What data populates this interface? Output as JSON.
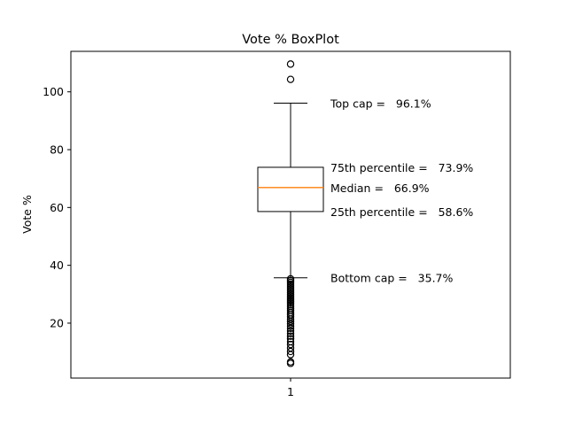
{
  "chart_data": {
    "type": "box",
    "title": "Vote % BoxPlot",
    "xlabel": "",
    "ylabel": "Vote %",
    "categories": [
      "1"
    ],
    "ylim": [
      1,
      114
    ],
    "yticks": [
      20,
      40,
      60,
      80,
      100
    ],
    "ytick_labels": [
      "20",
      "40",
      "60",
      "80",
      "100"
    ],
    "grid": false,
    "box": {
      "whisker_low": 35.7,
      "q1": 58.6,
      "median": 66.9,
      "q3": 73.9,
      "whisker_high": 96.1
    },
    "fliers": [
      109.6,
      104.3,
      35.3,
      34.7,
      34.1,
      33.5,
      32.9,
      32.3,
      31.7,
      31.1,
      30.5,
      29.9,
      29.3,
      28.7,
      28.1,
      27.5,
      26.9,
      26.3,
      25.7,
      25.0,
      24.3,
      23.6,
      22.9,
      22.2,
      21.4,
      20.6,
      19.8,
      19.0,
      18.2,
      17.3,
      16.4,
      15.5,
      14.6,
      13.6,
      12.6,
      11.4,
      10.2,
      9.1,
      6.6,
      6.1
    ],
    "annotations": [
      {
        "text": "Top cap =   96.1%",
        "y": 96.1
      },
      {
        "text": "75th percentile =   73.9%",
        "y": 73.9
      },
      {
        "text": "Median =   66.9%",
        "y": 66.9
      },
      {
        "text": "25th percentile =   58.6%",
        "y": 58.6
      },
      {
        "text": "Bottom cap =   35.7%",
        "y": 35.7
      }
    ],
    "colors": {
      "median": "#ff7f0e",
      "box": "#000000"
    }
  }
}
